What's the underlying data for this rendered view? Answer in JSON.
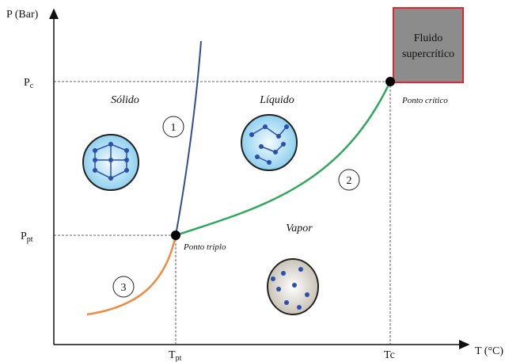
{
  "axes": {
    "y_label": "P (Bar)",
    "x_label": "T (°C)",
    "y_ticks": [
      {
        "main": "P",
        "sub": "c"
      },
      {
        "main": "P",
        "sub": "pt"
      }
    ],
    "x_ticks": [
      {
        "main": "T",
        "sub": "pt"
      },
      {
        "main": "Tc"
      }
    ]
  },
  "regions": {
    "solid": "Sólido",
    "liquid": "Líquido",
    "vapor": "Vapor"
  },
  "points": {
    "critical": "Ponto crítico",
    "triple": "Ponto triplo"
  },
  "supercritical": {
    "line1": "Fluido",
    "line2": "supercrítico"
  },
  "curves": [
    "1",
    "2",
    "3"
  ]
}
